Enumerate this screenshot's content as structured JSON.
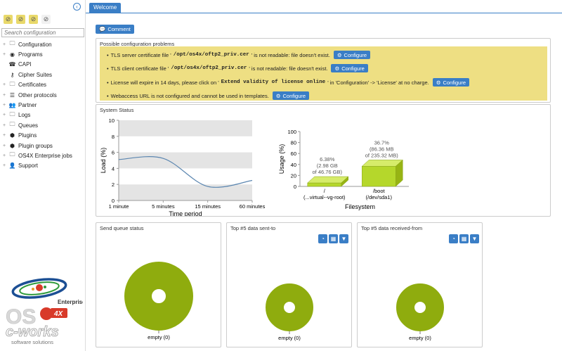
{
  "sidebar": {
    "search_placeholder": "Search configuration",
    "items": [
      {
        "label": "Configuration",
        "icon": "folder-icon",
        "expandable": true
      },
      {
        "label": "Programs",
        "icon": "programs-icon",
        "expandable": true
      },
      {
        "label": "CAPI",
        "icon": "phone-icon",
        "expandable": false
      },
      {
        "label": "Cipher Suites",
        "icon": "key-icon",
        "expandable": false
      },
      {
        "label": "Certificates",
        "icon": "folder-icon",
        "expandable": true
      },
      {
        "label": "Other protocols",
        "icon": "server-icon",
        "expandable": true
      },
      {
        "label": "Partner",
        "icon": "users-icon",
        "expandable": true
      },
      {
        "label": "Logs",
        "icon": "folder-icon",
        "expandable": true
      },
      {
        "label": "Queues",
        "icon": "folder-icon",
        "expandable": true
      },
      {
        "label": "Plugins",
        "icon": "cube-icon",
        "expandable": true
      },
      {
        "label": "Plugin groups",
        "icon": "cubes-icon",
        "expandable": true
      },
      {
        "label": "OS4X Enterprise jobs",
        "icon": "folder-icon",
        "expandable": true
      },
      {
        "label": "Support",
        "icon": "user-icon",
        "expandable": true
      }
    ],
    "logo": {
      "enterprise": "Enterprise",
      "os": "OS",
      "badge": "4X",
      "cworks": "c-works",
      "tagline": "software solutions"
    }
  },
  "tabs": {
    "welcome": "Welcome"
  },
  "comment_button": "Comment",
  "problems": {
    "title": "Possible configuration problems",
    "configure_label": "Configure",
    "items": [
      {
        "pre": "TLS server certificate file '",
        "code": "/opt/os4x/oftp2_priv.cer",
        "post": "' is not readable: file doesn't exist."
      },
      {
        "pre": "TLS client certificate file '",
        "code": "/opt/os4x/oftp2_priv.cer",
        "post": "' is not readable: file doesn't exist."
      },
      {
        "pre": "License will expire in 14 days, please click on '",
        "code": "Extend validity of license online",
        "post": "' in 'Configuration' -> 'License' at no charge."
      },
      {
        "pre": "Webaccess URL is not configured and cannot be used in templates.",
        "code": "",
        "post": ""
      }
    ]
  },
  "system_status": {
    "title": "System Status",
    "load_chart": {
      "type": "line",
      "ylabel": "Load (%)",
      "xlabel": "Time period",
      "ylim": [
        0,
        10
      ],
      "yticks": [
        0,
        2,
        4,
        6,
        8,
        10
      ],
      "categories": [
        "1 minute",
        "5 minutes",
        "15 minutes",
        "60 minutes"
      ],
      "values": [
        5.1,
        5.25,
        1.75,
        2.5
      ],
      "line_color": "#5b86b0"
    },
    "usage_chart": {
      "type": "bar",
      "ylabel": "Usage (%)",
      "xlabel": "Filesystem",
      "ylim": [
        0,
        100
      ],
      "yticks": [
        0,
        20,
        40,
        60,
        80,
        100
      ],
      "categories": [
        "/\n(...virtual--vg-root)",
        "/boot\n(/dev/sda1)"
      ],
      "values": [
        6.38,
        36.7
      ],
      "labels": [
        "6.38%\n(2.98 GB\nof 46.76 GB)",
        "36.7%\n(86.36 MB\nof 235.32 MB)"
      ],
      "bar_color": "#b5d72b"
    }
  },
  "panels": [
    {
      "title": "Send queue status",
      "label": "empty (0)",
      "icons": false
    },
    {
      "title": "Top #5 data sent-to",
      "label": "empty (0)",
      "icons": true
    },
    {
      "title": "Top #5 data received-from",
      "label": "empty (0)",
      "icons": true
    }
  ],
  "chart_data": [
    {
      "type": "line",
      "title": "",
      "xlabel": "Time period",
      "ylabel": "Load (%)",
      "categories": [
        "1 minute",
        "5 minutes",
        "15 minutes",
        "60 minutes"
      ],
      "values": [
        5.1,
        5.25,
        1.75,
        2.5
      ],
      "ylim": [
        0,
        10
      ]
    },
    {
      "type": "bar",
      "title": "",
      "xlabel": "Filesystem",
      "ylabel": "Usage (%)",
      "categories": [
        "/ (...virtual--vg-root)",
        "/boot (/dev/sda1)"
      ],
      "values": [
        6.38,
        36.7
      ],
      "ylim": [
        0,
        100
      ]
    },
    {
      "type": "pie",
      "title": "Send queue status",
      "categories": [
        "empty"
      ],
      "values": [
        0
      ]
    },
    {
      "type": "pie",
      "title": "Top #5 data sent-to",
      "categories": [
        "empty"
      ],
      "values": [
        0
      ]
    },
    {
      "type": "pie",
      "title": "Top #5 data received-from",
      "categories": [
        "empty"
      ],
      "values": [
        0
      ]
    }
  ],
  "colors": {
    "accent": "#3a7ec6",
    "warning_bg": "#eedf83",
    "donut": "#8fac0e"
  }
}
